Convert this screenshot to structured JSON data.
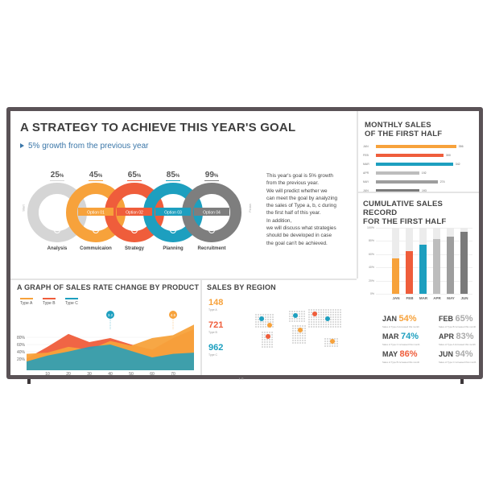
{
  "goal": {
    "title": "A STRATEGY TO ACHIEVE THIS YEAR'S GOAL",
    "subtitle": "5% growth from the previous year",
    "start_label": "Start",
    "finish_label": "Finish",
    "steps": [
      {
        "percent": "25",
        "unit": "%",
        "option": "",
        "label": "Analysis",
        "icon": "chart-icon",
        "color": "#d5d5d5"
      },
      {
        "percent": "45",
        "unit": "%",
        "option": "Option 01",
        "label": "Commuicaion",
        "icon": "people-icon",
        "color": "#f7a23b"
      },
      {
        "percent": "65",
        "unit": "%",
        "option": "Option 02",
        "label": "Strategy",
        "icon": "clock-icon",
        "color": "#ef5d3b"
      },
      {
        "percent": "85",
        "unit": "%",
        "option": "Option 03",
        "label": "Planning",
        "icon": "pie-icon",
        "color": "#1d9fbf"
      },
      {
        "percent": "99",
        "unit": "%",
        "option": "Option 04",
        "label": "Recruitment",
        "icon": "person-icon",
        "color": "#7e7e7e"
      }
    ],
    "text_lines": [
      "This year's goal is 5% growth",
      "from the previous year.",
      "We will predict whether we",
      "can meet the goal by analyzing",
      "the sales of Type a, b, c during",
      "the first half of this year.",
      "In addition,",
      "we will discuss what strategies",
      "should be developed in case",
      "the goal can't be achieved."
    ]
  },
  "monthly": {
    "title_lines": [
      "MONTHLY SALES",
      "OF THE FIRST HALF"
    ],
    "max": 500,
    "rows": [
      {
        "label": "JAN",
        "value": 356,
        "color": "#f7a23b"
      },
      {
        "label": "FEB",
        "value": 300,
        "color": "#ef5d3b"
      },
      {
        "label": "MAR",
        "value": 342,
        "color": "#1d9fbf"
      },
      {
        "label": "APR",
        "value": 192,
        "color": "#bdbdbd"
      },
      {
        "label": "MAY",
        "value": 274,
        "color": "#9e9e9e"
      },
      {
        "label": "JUN",
        "value": 193,
        "color": "#7a7a7a"
      }
    ]
  },
  "cumulative": {
    "title_lines": [
      "CUMULATIVE SALES RECORD",
      "FOR THE FIRST HALF"
    ],
    "yticks": [
      "100%",
      "80%",
      "60%",
      "40%",
      "20%",
      "0%"
    ],
    "bars": [
      {
        "label": "JAN",
        "value": 54,
        "color": "#f7a23b"
      },
      {
        "label": "FEB",
        "value": 65,
        "color": "#ef5d3b"
      },
      {
        "label": "MAR",
        "value": 74,
        "color": "#1d9fbf"
      },
      {
        "label": "APR",
        "value": 83,
        "color": "#bdbdbd"
      },
      {
        "label": "MAY",
        "value": 86,
        "color": "#9e9e9e"
      },
      {
        "label": "JUN",
        "value": 94,
        "color": "#7a7a7a"
      }
    ],
    "stats": [
      {
        "month": "JAN",
        "percent": "54%",
        "color": "#f7a23b",
        "desc": "Sales of Type A increased this month"
      },
      {
        "month": "FEB",
        "percent": "65%",
        "color": "#aaaaaa",
        "desc": "Sales of Type B increased this month"
      },
      {
        "month": "MAR",
        "percent": "74%",
        "color": "#1d9fbf",
        "desc": "Sales of Type C increased this month"
      },
      {
        "month": "APR",
        "percent": "83%",
        "color": "#aaaaaa",
        "desc": "Sales of Type A increased this month"
      },
      {
        "month": "MAY",
        "percent": "86%",
        "color": "#ef5d3b",
        "desc": "Sales of Type B increased this month"
      },
      {
        "month": "JUN",
        "percent": "94%",
        "color": "#aaaaaa",
        "desc": "Sales of Type C increased this month"
      }
    ]
  },
  "product": {
    "title": "A GRAPH OF SALES RATE CHANGE BY PRODUCT",
    "legend": [
      {
        "name": "Type A",
        "color": "#f7a23b"
      },
      {
        "name": "Type B",
        "color": "#ef5d3b"
      },
      {
        "name": "Type C",
        "color": "#1d9fbf"
      }
    ],
    "yticks": [
      "80%",
      "60%",
      "40%",
      "20%"
    ],
    "xticks": [
      "10",
      "20",
      "30",
      "40",
      "50",
      "60",
      "70"
    ],
    "callouts": [
      {
        "x": 40,
        "text": "3.2",
        "color": "#1d9fbf"
      },
      {
        "x": 70,
        "text": "4.5",
        "color": "#f7a23b"
      }
    ]
  },
  "region": {
    "title": "SALES BY REGION",
    "stats": [
      {
        "value": "148",
        "color": "#f7a23b",
        "type": "Type A"
      },
      {
        "value": "721",
        "color": "#ef5d3b",
        "type": "Type B"
      },
      {
        "value": "962",
        "color": "#1d9fbf",
        "type": "Type C"
      }
    ]
  },
  "brand": {
    "logo": "LG"
  },
  "chart_data": [
    {
      "type": "bar",
      "title": "MONTHLY SALES OF THE FIRST HALF",
      "categories": [
        "JAN",
        "FEB",
        "MAR",
        "APR",
        "MAY",
        "JUN"
      ],
      "values": [
        356,
        300,
        342,
        192,
        274,
        193
      ],
      "orientation": "horizontal"
    },
    {
      "type": "bar",
      "title": "CUMULATIVE SALES RECORD FOR THE FIRST HALF",
      "categories": [
        "JAN",
        "FEB",
        "MAR",
        "APR",
        "MAY",
        "JUN"
      ],
      "values": [
        54,
        65,
        74,
        83,
        86,
        94
      ],
      "ylim": [
        0,
        100
      ],
      "grid": true
    },
    {
      "type": "area",
      "title": "A GRAPH OF SALES RATE CHANGE BY PRODUCT",
      "x": [
        0,
        10,
        20,
        30,
        40,
        50,
        60,
        70,
        80
      ],
      "series": [
        {
          "name": "Type A",
          "values": [
            28,
            30,
            40,
            35,
            50,
            42,
            55,
            60,
            78
          ]
        },
        {
          "name": "Type B",
          "values": [
            20,
            40,
            62,
            48,
            55,
            44,
            35,
            55,
            70
          ]
        },
        {
          "name": "Type C",
          "values": [
            15,
            25,
            32,
            40,
            44,
            33,
            22,
            28,
            30
          ]
        }
      ],
      "ylim": [
        0,
        100
      ]
    }
  ]
}
